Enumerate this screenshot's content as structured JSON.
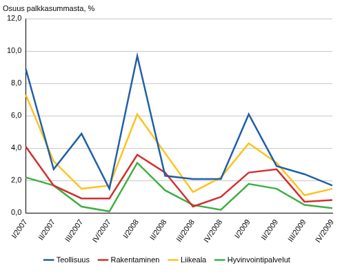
{
  "chart_data": {
    "type": "line",
    "y_label": "Osuus palkkasummasta, %",
    "categories": [
      "I/2007",
      "II/2007",
      "III/2007",
      "IV/2007",
      "I/2008",
      "II/2008",
      "III/2008",
      "IV/2008",
      "I/2009",
      "II/2009",
      "III/2009",
      "IV/2009"
    ],
    "series": [
      {
        "name": "Teollisuus",
        "color": "#1f5fa8",
        "values": [
          8.9,
          2.7,
          4.9,
          1.5,
          9.7,
          2.3,
          2.1,
          2.1,
          6.1,
          2.9,
          2.4,
          1.7
        ]
      },
      {
        "name": "Rakentaminen",
        "color": "#d42e2e",
        "values": [
          4.1,
          1.7,
          0.9,
          0.9,
          3.6,
          2.5,
          0.4,
          1.0,
          2.5,
          2.7,
          0.7,
          0.8
        ]
      },
      {
        "name": "Liikeala",
        "color": "#ffc21e",
        "values": [
          7.3,
          3.2,
          1.5,
          1.7,
          6.1,
          3.7,
          1.3,
          2.2,
          4.3,
          3.1,
          1.1,
          1.5
        ]
      },
      {
        "name": "Hyvinvointipalvelut",
        "color": "#3cb043",
        "values": [
          2.2,
          1.7,
          0.4,
          0.1,
          3.1,
          1.4,
          0.5,
          0.2,
          1.8,
          1.5,
          0.5,
          0.3
        ]
      }
    ],
    "ylim": [
      0,
      12
    ],
    "yticks": [
      {
        "value": 0,
        "label": "0,0"
      },
      {
        "value": 2,
        "label": "2,0"
      },
      {
        "value": 4,
        "label": "4,0"
      },
      {
        "value": 6,
        "label": "6,0"
      },
      {
        "value": 8,
        "label": "8,0"
      },
      {
        "value": 10,
        "label": "10,0"
      },
      {
        "value": 12,
        "label": "12,0"
      }
    ],
    "grid": true,
    "legend": "bottom"
  }
}
